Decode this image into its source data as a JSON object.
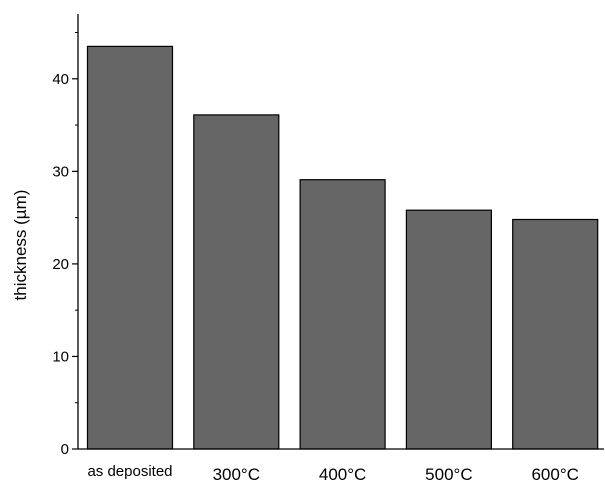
{
  "chart_data": {
    "type": "bar",
    "categories": [
      "as deposited",
      "300°C",
      "400°C",
      "500°C",
      "600°C"
    ],
    "values": [
      43.5,
      36.1,
      29.1,
      25.8,
      24.8
    ],
    "xlabel": "",
    "ylabel": "thickness (µm)",
    "ylim": [
      0,
      47
    ],
    "yticks": [
      0,
      10,
      20,
      30,
      40
    ],
    "grid": false,
    "legend": "none",
    "bar_color": "#666666",
    "bar_edge_color": "#000000"
  }
}
